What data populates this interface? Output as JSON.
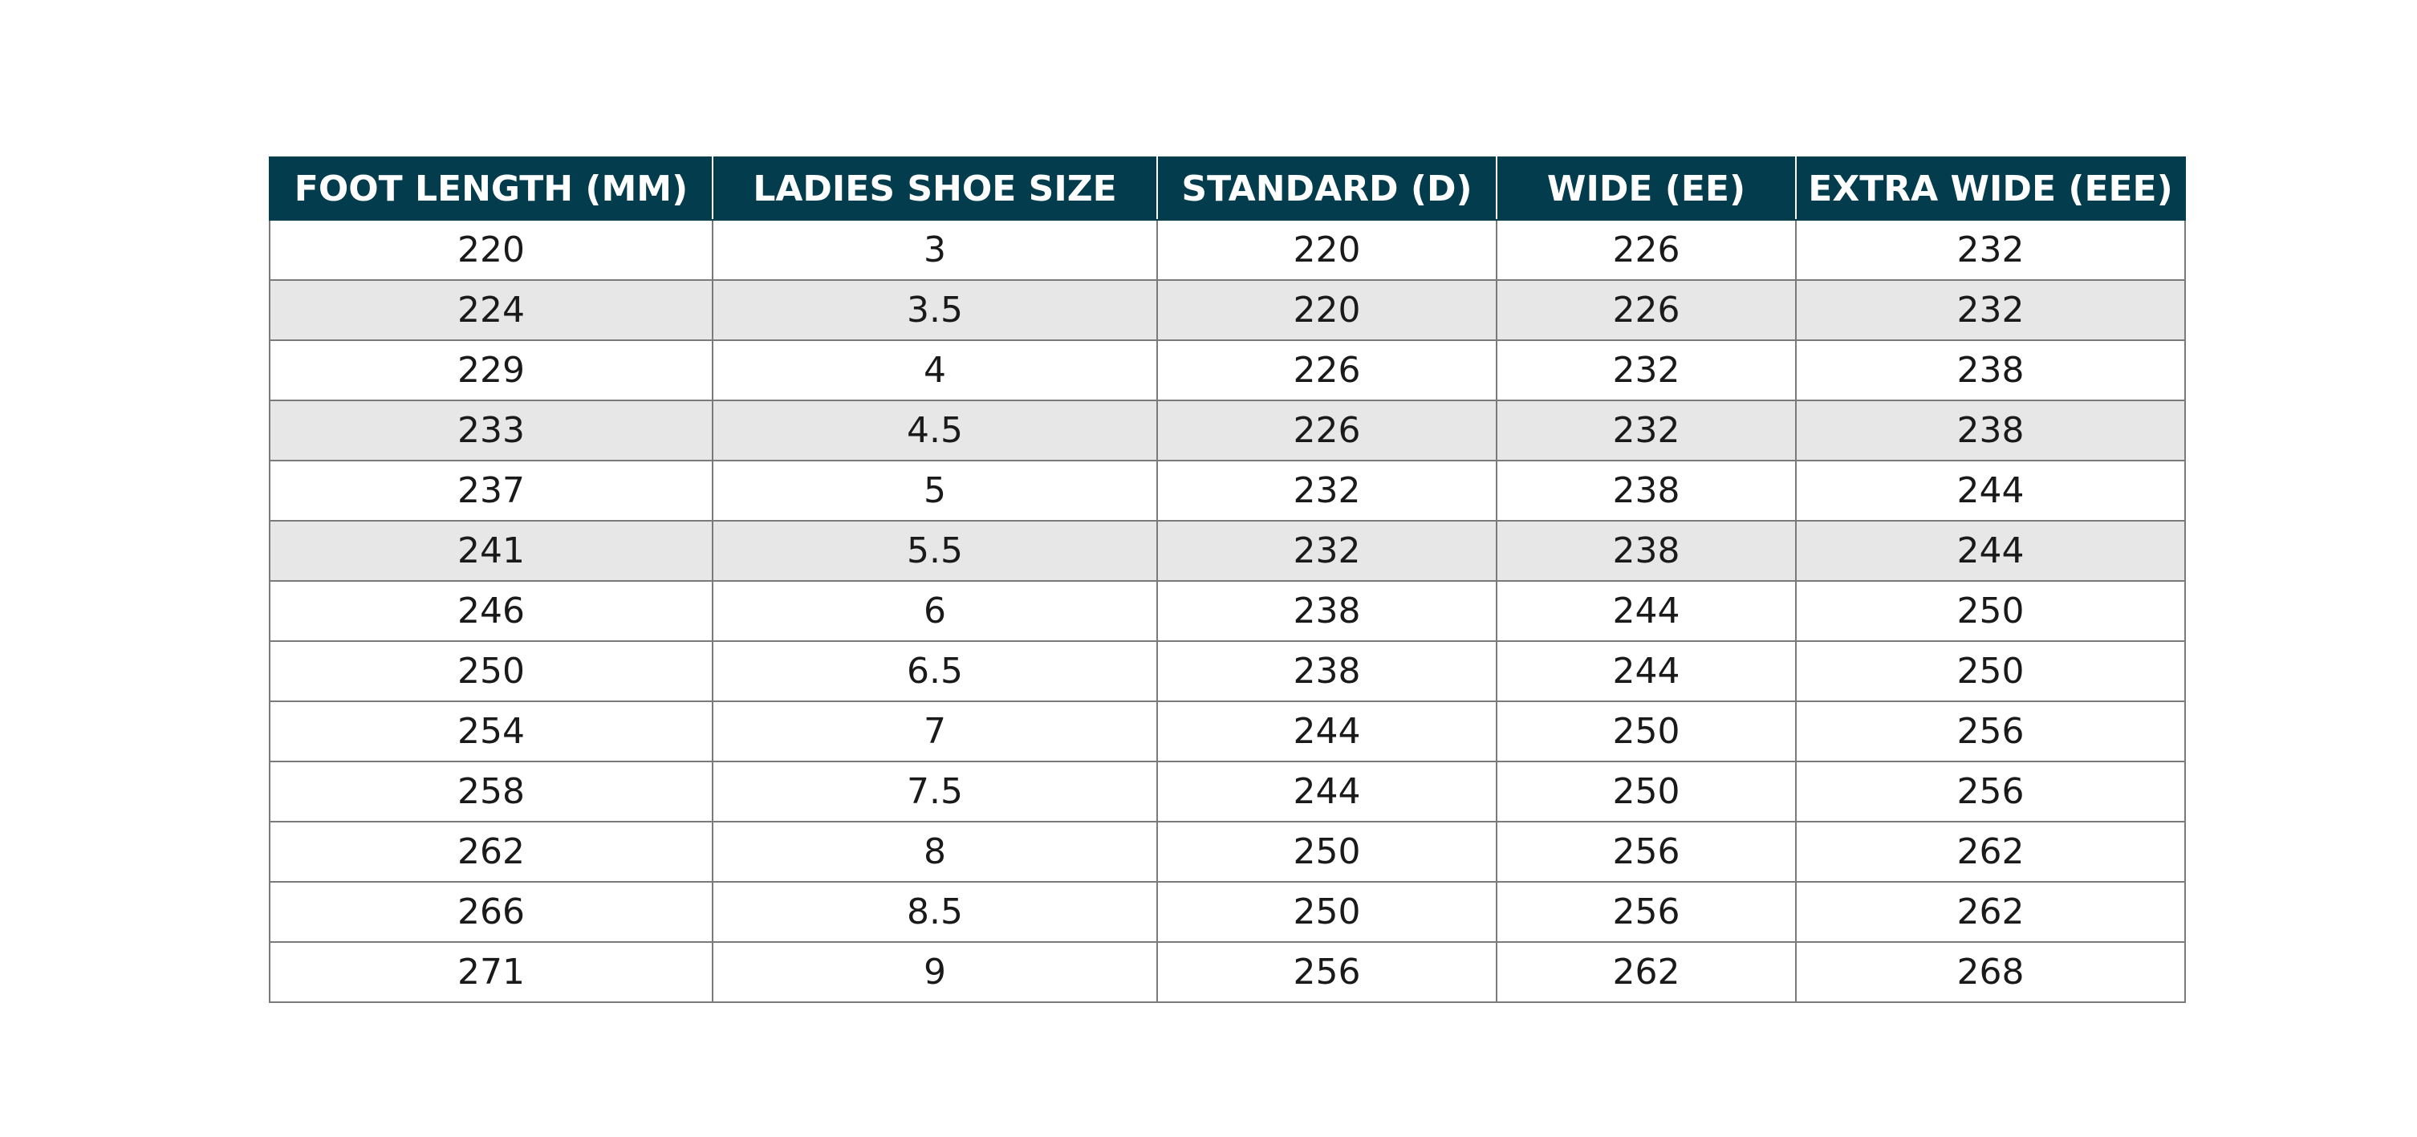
{
  "table": {
    "header": [
      "FOOT LENGTH (MM)",
      "LADIES SHOE SIZE",
      "STANDARD (D)",
      "WIDE (EE)",
      "EXTRA WIDE (EEE)"
    ],
    "rows": [
      [
        "220",
        "3",
        "220",
        "226",
        "232"
      ],
      [
        "224",
        "3.5",
        "220",
        "226",
        "232"
      ],
      [
        "229",
        "4",
        "226",
        "232",
        "238"
      ],
      [
        "233",
        "4.5",
        "226",
        "232",
        "238"
      ],
      [
        "237",
        "5",
        "232",
        "238",
        "244"
      ],
      [
        "241",
        "5.5",
        "232",
        "238",
        "244"
      ],
      [
        "246",
        "6",
        "238",
        "244",
        "250"
      ],
      [
        "250",
        "6.5",
        "238",
        "244",
        "250"
      ],
      [
        "254",
        "7",
        "244",
        "250",
        "256"
      ],
      [
        "258",
        "7.5",
        "244",
        "250",
        "256"
      ],
      [
        "262",
        "8",
        "250",
        "256",
        "262"
      ],
      [
        "266",
        "8.5",
        "250",
        "256",
        "262"
      ],
      [
        "271",
        "9",
        "256",
        "262",
        "268"
      ]
    ]
  }
}
